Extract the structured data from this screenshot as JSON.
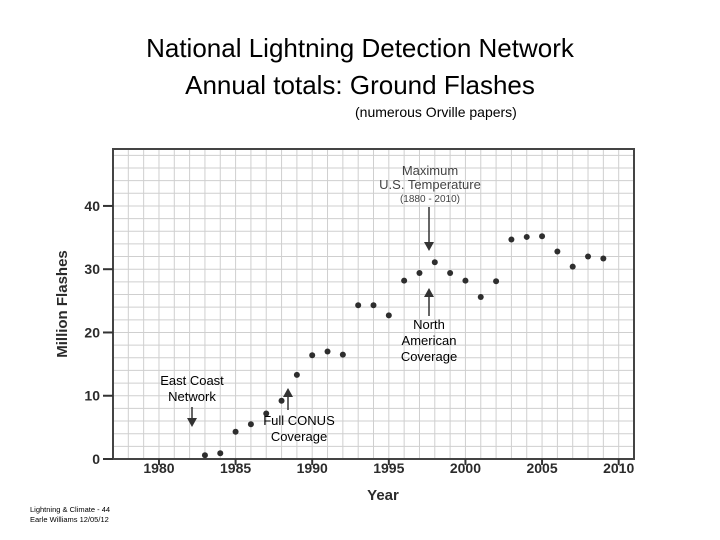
{
  "title_line1": "National Lightning Detection Network",
  "title_line2": "Annual totals: Ground Flashes",
  "subtitle": "(numerous Orville papers)",
  "footer": {
    "line1": "Lightning & Climate - 44",
    "line2": "Earle Williams 12/05/12"
  },
  "annotations": {
    "max_temp": [
      "Maximum",
      "U.S. Temperature",
      "(1880 - 2010)"
    ],
    "north_american": [
      "North",
      "American",
      "Coverage"
    ],
    "east_coast": [
      "East Coast",
      "Network"
    ],
    "full_conus": [
      "Full CONUS",
      "Coverage"
    ]
  },
  "chart_data": {
    "type": "scatter",
    "title": "National Lightning Detection Network Annual totals: Ground Flashes",
    "xlabel": "Year",
    "ylabel": "Million Flashes",
    "xlim": [
      1977,
      2011
    ],
    "ylim": [
      0,
      49
    ],
    "grid": true,
    "x_ticks": [
      1980,
      1985,
      1990,
      1995,
      2000,
      2005,
      2010
    ],
    "y_ticks": [
      0,
      10,
      20,
      30,
      40
    ],
    "x": [
      1983,
      1984,
      1985,
      1986,
      1987,
      1988,
      1989,
      1990,
      1991,
      1992,
      1993,
      1994,
      1995,
      1996,
      1997,
      1998,
      1999,
      2000,
      2001,
      2002,
      2003,
      2004,
      2005,
      2006,
      2007,
      2008,
      2009
    ],
    "y": [
      0.6,
      0.9,
      4.3,
      5.5,
      7.2,
      9.2,
      13.3,
      16.4,
      17.0,
      16.5,
      24.3,
      24.3,
      22.7,
      28.2,
      29.4,
      31.1,
      29.4,
      28.2,
      25.6,
      28.1,
      34.7,
      35.1,
      35.2,
      32.8,
      30.4,
      32.0,
      31.7
    ],
    "colors": {
      "point": "#2e2e2e",
      "grid": "#cfcfcf",
      "frame": "#444444",
      "annotation_gray": "#444444"
    }
  }
}
